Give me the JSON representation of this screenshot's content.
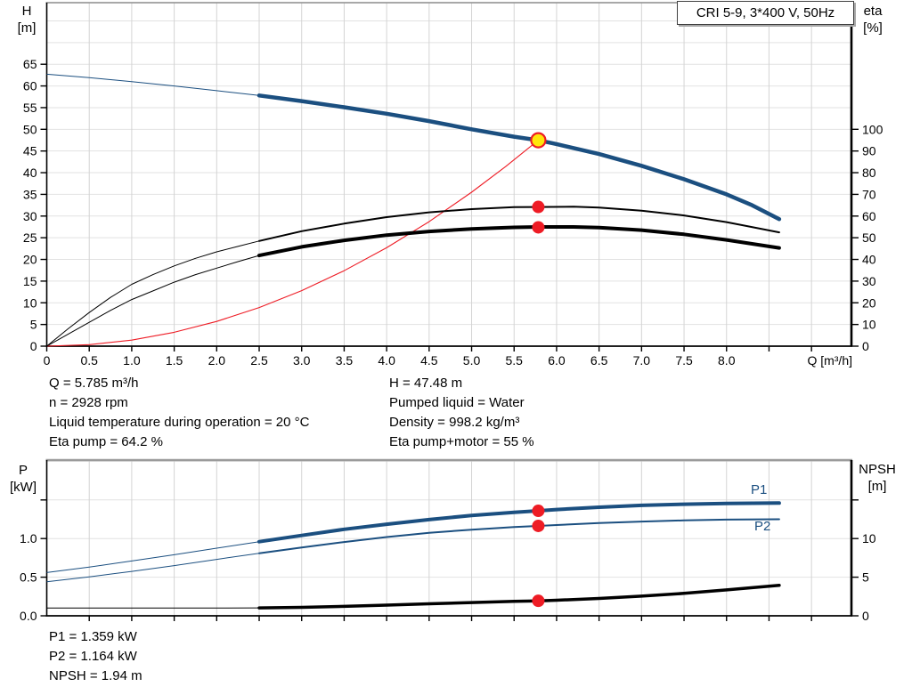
{
  "header": {
    "title_box": "CRI 5-9, 3*400 V, 50Hz"
  },
  "colors": {
    "blue": "#1b4f80",
    "red": "#ee1c25",
    "yellow": "#ffe60a",
    "black": "#000000",
    "grid_v": "#d4d4d4",
    "grid_h": "#e2e2e2",
    "frame_gray": "#9b9b9b"
  },
  "top_info": {
    "left": [
      "Q = 5.785 m³/h",
      "n = 2928 rpm",
      "Liquid temperature during operation = 20 °C",
      "Eta pump = 64.2 %"
    ],
    "right": [
      "H = 47.48 m",
      "Pumped liquid = Water",
      "Density = 998.2 kg/m³",
      "Eta pump+motor = 55 %"
    ]
  },
  "bottom_info": {
    "lines": [
      "P1 = 1.359 kW",
      "P2 = 1.164 kW",
      "NPSH = 1.94 m"
    ]
  },
  "chart_data": [
    {
      "type": "line",
      "title": "CRI 5-9, 3*400 V, 50Hz",
      "xlabel": "Q [m³/h]",
      "left_axis": {
        "label_lines": [
          "H",
          "[m]"
        ],
        "range": [
          0,
          79.2
        ],
        "ticks": [
          {
            "v": 0,
            "t": "0"
          },
          {
            "v": 5,
            "t": "5"
          },
          {
            "v": 10,
            "t": "10"
          },
          {
            "v": 15,
            "t": "15"
          },
          {
            "v": 20,
            "t": "20"
          },
          {
            "v": 25,
            "t": "25"
          },
          {
            "v": 30,
            "t": "30"
          },
          {
            "v": 35,
            "t": "35"
          },
          {
            "v": 40,
            "t": "40"
          },
          {
            "v": 45,
            "t": "45"
          },
          {
            "v": 50,
            "t": "50"
          },
          {
            "v": 55,
            "t": "55"
          },
          {
            "v": 60,
            "t": "60"
          },
          {
            "v": 65,
            "t": "65"
          }
        ]
      },
      "right_axis": {
        "label_lines": [
          "eta",
          "[%]"
        ],
        "range": [
          0,
          158.4
        ],
        "ticks": [
          {
            "v": 0,
            "t": "0"
          },
          {
            "v": 10,
            "t": "10"
          },
          {
            "v": 20,
            "t": "20"
          },
          {
            "v": 30,
            "t": "30"
          },
          {
            "v": 40,
            "t": "40"
          },
          {
            "v": 50,
            "t": "50"
          },
          {
            "v": 60,
            "t": "60"
          },
          {
            "v": 70,
            "t": "70"
          },
          {
            "v": 80,
            "t": "80"
          },
          {
            "v": 90,
            "t": "90"
          },
          {
            "v": 100,
            "t": "100"
          }
        ]
      },
      "x_axis": {
        "range": [
          0,
          9.47
        ],
        "grid_step": 0.5,
        "ticks": [
          {
            "v": 0,
            "t": "0"
          },
          {
            "v": 0.5,
            "t": "0.5"
          },
          {
            "v": 1,
            "t": "1.0"
          },
          {
            "v": 1.5,
            "t": "1.5"
          },
          {
            "v": 2,
            "t": "2.0"
          },
          {
            "v": 2.5,
            "t": "2.5"
          },
          {
            "v": 3,
            "t": "3.0"
          },
          {
            "v": 3.5,
            "t": "3.5"
          },
          {
            "v": 4,
            "t": "4.0"
          },
          {
            "v": 4.5,
            "t": "4.5"
          },
          {
            "v": 5,
            "t": "5.0"
          },
          {
            "v": 5.5,
            "t": "5.5"
          },
          {
            "v": 6,
            "t": "6.0"
          },
          {
            "v": 6.5,
            "t": "6.5"
          },
          {
            "v": 7,
            "t": "7.0"
          },
          {
            "v": 7.5,
            "t": "7.5"
          },
          {
            "v": 8,
            "t": "8.0"
          },
          {
            "v": 8.5,
            "t": ""
          },
          {
            "v": 9,
            "t": ""
          }
        ]
      },
      "series": [
        {
          "name": "head-curve",
          "label": "H",
          "axis": "left",
          "color_key": "blue",
          "width": 4.5,
          "thin_until": 2.5,
          "points": [
            [
              0,
              62.7
            ],
            [
              0.5,
              61.9
            ],
            [
              1,
              61.0
            ],
            [
              1.5,
              60.0
            ],
            [
              2,
              58.9
            ],
            [
              2.5,
              57.8
            ],
            [
              3,
              56.5
            ],
            [
              3.5,
              55.1
            ],
            [
              4,
              53.6
            ],
            [
              4.5,
              51.9
            ],
            [
              5,
              50.0
            ],
            [
              5.5,
              48.3
            ],
            [
              5.785,
              47.48
            ],
            [
              6,
              46.6
            ],
            [
              6.5,
              44.3
            ],
            [
              7,
              41.6
            ],
            [
              7.5,
              38.5
            ],
            [
              8,
              35.0
            ],
            [
              8.3,
              32.5
            ],
            [
              8.62,
              29.3
            ]
          ]
        },
        {
          "name": "system-curve",
          "label": "System",
          "axis": "left",
          "color_key": "red",
          "width": 1.1,
          "points": [
            [
              0,
              0
            ],
            [
              0.5,
              0.35
            ],
            [
              1,
              1.4
            ],
            [
              1.5,
              3.2
            ],
            [
              2,
              5.7
            ],
            [
              2.5,
              8.9
            ],
            [
              3,
              12.8
            ],
            [
              3.5,
              17.4
            ],
            [
              4,
              22.7
            ],
            [
              4.5,
              28.7
            ],
            [
              5,
              35.5
            ],
            [
              5.4,
              41.4
            ],
            [
              5.785,
              47.48
            ]
          ]
        },
        {
          "name": "eta-pump-curve",
          "label": "Eta pump",
          "axis": "right",
          "color_key": "black",
          "width": 2,
          "thin_until": 2.5,
          "points": [
            [
              0,
              0
            ],
            [
              0.25,
              8
            ],
            [
              0.5,
              15.5
            ],
            [
              0.75,
              22.5
            ],
            [
              1,
              28.5
            ],
            [
              1.25,
              33
            ],
            [
              1.5,
              37
            ],
            [
              1.75,
              40.5
            ],
            [
              2,
              43.5
            ],
            [
              2.25,
              46
            ],
            [
              2.5,
              48.5
            ],
            [
              3,
              53
            ],
            [
              3.5,
              56.5
            ],
            [
              4,
              59.5
            ],
            [
              4.5,
              61.7
            ],
            [
              5,
              63.2
            ],
            [
              5.5,
              64.1
            ],
            [
              5.785,
              64.2
            ],
            [
              6.2,
              64.3
            ],
            [
              6.5,
              63.9
            ],
            [
              7,
              62.5
            ],
            [
              7.5,
              60.3
            ],
            [
              8,
              57.2
            ],
            [
              8.62,
              52.5
            ]
          ]
        },
        {
          "name": "eta-pump-motor-curve",
          "label": "Eta pump+motor",
          "axis": "right",
          "color_key": "black",
          "width": 4,
          "thin_until": 2.5,
          "points": [
            [
              0,
              0
            ],
            [
              0.25,
              5.5
            ],
            [
              0.5,
              11
            ],
            [
              0.75,
              16.5
            ],
            [
              1,
              21.5
            ],
            [
              1.25,
              25.5
            ],
            [
              1.5,
              29.5
            ],
            [
              1.75,
              33
            ],
            [
              2,
              36
            ],
            [
              2.25,
              39
            ],
            [
              2.5,
              41.8
            ],
            [
              3,
              45.8
            ],
            [
              3.5,
              48.8
            ],
            [
              4,
              51.2
            ],
            [
              4.5,
              52.9
            ],
            [
              5,
              54.1
            ],
            [
              5.5,
              54.8
            ],
            [
              5.785,
              55
            ],
            [
              6.2,
              55
            ],
            [
              6.5,
              54.7
            ],
            [
              7,
              53.5
            ],
            [
              7.5,
              51.6
            ],
            [
              8,
              49
            ],
            [
              8.62,
              45.3
            ]
          ]
        }
      ],
      "markers": [
        {
          "name": "duty-point",
          "axis": "left",
          "x": 5.785,
          "y": 47.48,
          "style": "duty"
        },
        {
          "name": "eta-pump-point",
          "axis": "right",
          "x": 5.785,
          "y": 64.2,
          "style": "dot"
        },
        {
          "name": "eta-pump-motor-point",
          "axis": "right",
          "x": 5.785,
          "y": 54.8,
          "style": "dot"
        }
      ]
    },
    {
      "type": "line",
      "title": "",
      "xlabel": "",
      "left_axis": {
        "label_lines": [
          "P",
          "[kW]"
        ],
        "range": [
          0,
          2.016
        ],
        "ticks": [
          {
            "v": 0,
            "t": "0.0"
          },
          {
            "v": 0.5,
            "t": "0.5"
          },
          {
            "v": 1,
            "t": "1.0"
          },
          {
            "v": 1.5,
            "t": ""
          }
        ]
      },
      "right_axis": {
        "label_lines": [
          "NPSH",
          "[m]"
        ],
        "range": [
          0,
          20.16
        ],
        "ticks": [
          {
            "v": 0,
            "t": "0"
          },
          {
            "v": 5,
            "t": "5"
          },
          {
            "v": 10,
            "t": "10"
          },
          {
            "v": 15,
            "t": ""
          }
        ]
      },
      "x_axis": {
        "range": [
          0,
          9.47
        ],
        "grid_step": 0.5,
        "ticks_all_unlabeled": true
      },
      "series": [
        {
          "name": "p1-curve",
          "label": "P1",
          "axis": "left",
          "color_key": "blue",
          "width": 4,
          "thin_until": 2.5,
          "points": [
            [
              0,
              0.56
            ],
            [
              0.5,
              0.63
            ],
            [
              1,
              0.71
            ],
            [
              1.5,
              0.79
            ],
            [
              2,
              0.875
            ],
            [
              2.5,
              0.96
            ],
            [
              3,
              1.04
            ],
            [
              3.5,
              1.12
            ],
            [
              4,
              1.185
            ],
            [
              4.5,
              1.245
            ],
            [
              5,
              1.3
            ],
            [
              5.5,
              1.34
            ],
            [
              5.785,
              1.359
            ],
            [
              6,
              1.375
            ],
            [
              6.5,
              1.405
            ],
            [
              7,
              1.43
            ],
            [
              7.5,
              1.445
            ],
            [
              8,
              1.455
            ],
            [
              8.62,
              1.46
            ]
          ]
        },
        {
          "name": "p2-curve",
          "label": "P2",
          "axis": "left",
          "color_key": "blue",
          "width": 2,
          "thin_until": 2.5,
          "points": [
            [
              0,
              0.44
            ],
            [
              0.5,
              0.505
            ],
            [
              1,
              0.575
            ],
            [
              1.5,
              0.65
            ],
            [
              2,
              0.73
            ],
            [
              2.5,
              0.81
            ],
            [
              3,
              0.885
            ],
            [
              3.5,
              0.955
            ],
            [
              4,
              1.02
            ],
            [
              4.5,
              1.075
            ],
            [
              5,
              1.115
            ],
            [
              5.5,
              1.15
            ],
            [
              5.785,
              1.164
            ],
            [
              6,
              1.175
            ],
            [
              6.5,
              1.2
            ],
            [
              7,
              1.22
            ],
            [
              7.5,
              1.235
            ],
            [
              8,
              1.245
            ],
            [
              8.62,
              1.25
            ]
          ]
        },
        {
          "name": "npsh-curve",
          "label": "NPSH",
          "axis": "right",
          "color_key": "black",
          "width": 3.5,
          "thin_until": 2.5,
          "points": [
            [
              0,
              1.0
            ],
            [
              1,
              1.0
            ],
            [
              2,
              1.0
            ],
            [
              2.5,
              1.02
            ],
            [
              3,
              1.1
            ],
            [
              3.5,
              1.22
            ],
            [
              4,
              1.38
            ],
            [
              4.5,
              1.55
            ],
            [
              5,
              1.72
            ],
            [
              5.5,
              1.88
            ],
            [
              5.785,
              1.94
            ],
            [
              6,
              2.02
            ],
            [
              6.5,
              2.25
            ],
            [
              7,
              2.55
            ],
            [
              7.5,
              2.9
            ],
            [
              8,
              3.35
            ],
            [
              8.62,
              3.95
            ]
          ]
        }
      ],
      "markers": [
        {
          "name": "p1-point",
          "axis": "left",
          "x": 5.785,
          "y": 1.359,
          "style": "dot"
        },
        {
          "name": "p2-point",
          "axis": "left",
          "x": 5.785,
          "y": 1.164,
          "style": "dot"
        },
        {
          "name": "npsh-point",
          "axis": "right",
          "x": 5.785,
          "y": 1.94,
          "style": "dot"
        }
      ]
    }
  ]
}
